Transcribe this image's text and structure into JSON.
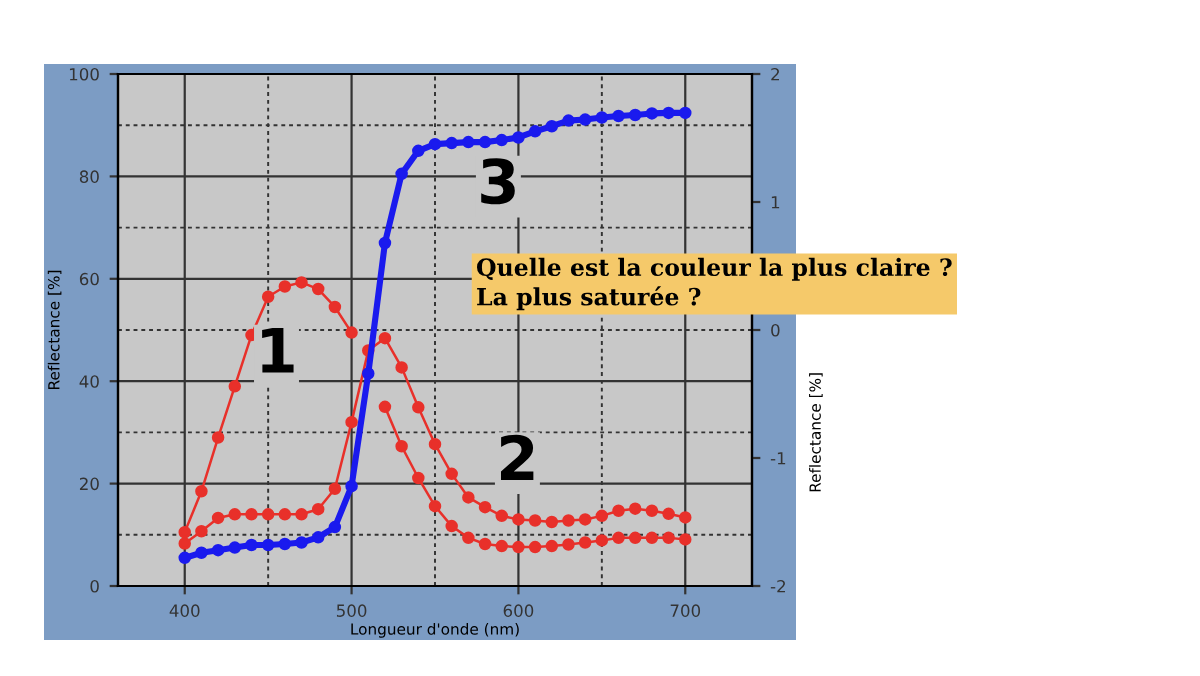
{
  "chart_data": {
    "type": "line",
    "xlabel": "Longueur d'onde (nm)",
    "ylabel": "Reflectance [%]",
    "y2label": "Reflectance [%]",
    "x": [
      400,
      410,
      420,
      430,
      440,
      450,
      460,
      470,
      480,
      490,
      500,
      510,
      520,
      530,
      540,
      550,
      560,
      570,
      580,
      590,
      600,
      610,
      620,
      630,
      640,
      650,
      660,
      670,
      680,
      690,
      700
    ],
    "series": [
      {
        "color": "#e8302a",
        "values": [
          10.5,
          18.5,
          29,
          39,
          49,
          56.5,
          58.5,
          59.3,
          58,
          54.5,
          49.5,
          null,
          35,
          27.3,
          21.1,
          15.6,
          11.7,
          9.4,
          8.2,
          7.8,
          7.6,
          7.6,
          7.8,
          8.1,
          8.5,
          8.9,
          9.4,
          9.4,
          9.4,
          9.4,
          9.1
        ]
      },
      {
        "color": "#e8302a",
        "values": [
          8.3,
          10.7,
          13.3,
          14,
          14,
          14,
          14,
          14,
          15,
          19,
          32,
          46,
          48.4,
          42.7,
          34.9,
          27.7,
          21.9,
          17.3,
          15.4,
          13.7,
          13,
          12.8,
          12.5,
          12.8,
          13,
          13.7,
          14.7,
          15.1,
          14.7,
          14.1,
          13.4
        ]
      },
      {
        "color": "#1a1aee",
        "values": [
          5.5,
          6.5,
          7,
          7.5,
          8,
          8,
          8.2,
          8.5,
          9.5,
          11.5,
          19.5,
          41.5,
          67,
          80.5,
          85,
          86.3,
          86.5,
          86.7,
          86.7,
          87.1,
          87.6,
          88.8,
          89.8,
          90.9,
          91.1,
          91.5,
          91.8,
          92,
          92.3,
          92.4,
          92.4
        ]
      }
    ],
    "marker": "circle",
    "line_style": "solid",
    "grid": true,
    "xlim": [
      360,
      740
    ],
    "xticks": [
      400,
      500,
      600,
      700
    ],
    "ylim": [
      0,
      100
    ],
    "yticks": [
      0,
      20,
      40,
      60,
      80,
      100
    ],
    "y2lim": [
      -2,
      2
    ],
    "y2ticks": [
      {
        "value": -2,
        "label": "-2"
      },
      {
        "value": -1,
        "label": "-1"
      },
      0,
      1,
      2
    ],
    "annotations": [
      "1",
      "2",
      "3",
      "Quelle est la couleur la plus claire ?\nLa plus saturée ?"
    ]
  }
}
